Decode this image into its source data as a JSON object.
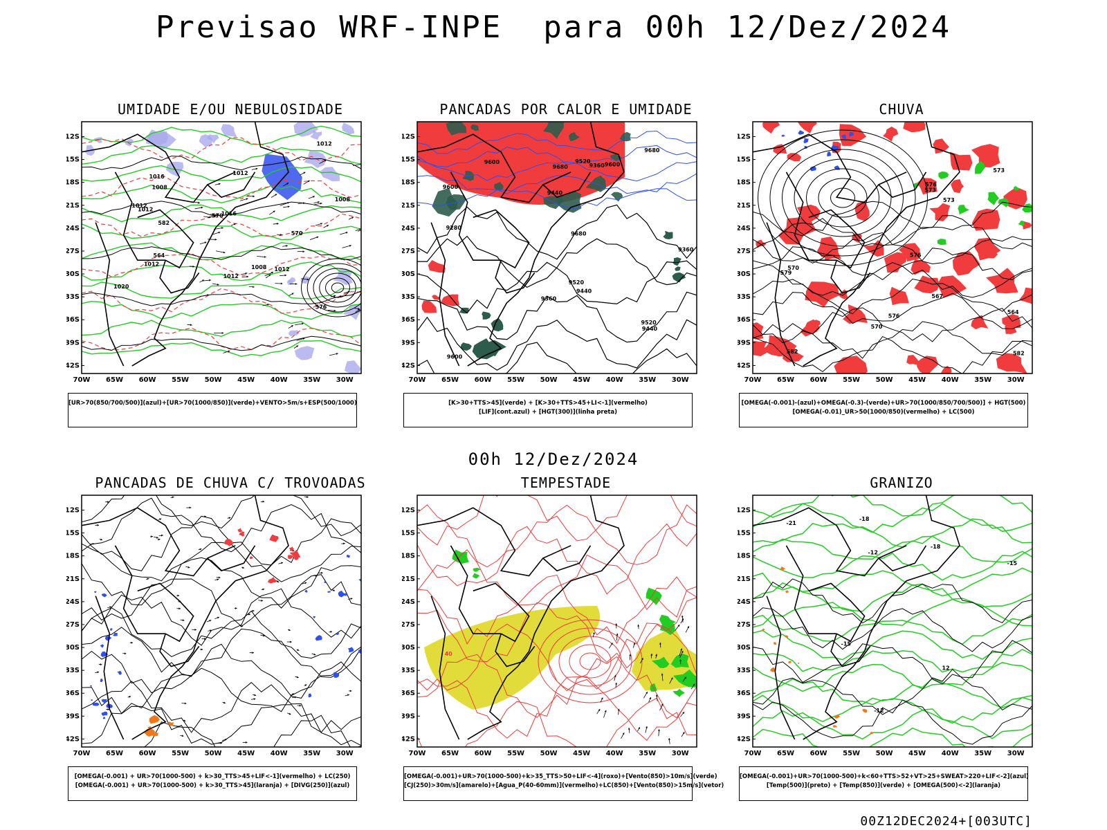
{
  "header": {
    "title": "Previsao WRF-INPE  para 00h 12/Dez/2024",
    "subtitle": "00h 12/Dez/2024"
  },
  "footer": {
    "run_label": "00Z12DEC2024+[003UTC]"
  },
  "axes": {
    "lat_labels": [
      "12S",
      "15S",
      "18S",
      "21S",
      "24S",
      "27S",
      "30S",
      "33S",
      "36S",
      "39S",
      "42S"
    ],
    "lon_labels": [
      "70W",
      "65W",
      "60W",
      "55W",
      "50W",
      "45W",
      "40W",
      "35W",
      "30W"
    ]
  },
  "colors": {
    "red": "#f03c3c",
    "green": "#22cc22",
    "blue": "#3050ee",
    "lavender": "#aaaaee",
    "yellow": "#e2dc3a",
    "orange": "#f07818",
    "darkgreen": "#2c5c4c"
  },
  "panels": [
    {
      "title": "UMIDADE E/OU NEBULOSIDADE",
      "legend": [
        "[UR>70(850/700/500)](azul)+[UR>70(1000/850)](verde)+VENTO>5m/s+ESP(500/1000)"
      ],
      "contour_labels": [
        "1012",
        "1012",
        "1008",
        "1008",
        "1012",
        "1012",
        "1016",
        "1012",
        "1008",
        "1012",
        "576",
        "570",
        "582",
        "1016",
        "1020",
        "1012",
        "564",
        "570"
      ]
    },
    {
      "title": "PANCADAS POR CALOR E UMIDADE",
      "legend": [
        "[K>30+TTS>45](verde) + [K>30+TTS>45+LI<-1](vermelho)",
        "[LIF](cont.azul) + [HGT(300)](linha preta)"
      ],
      "contour_labels": [
        "9680",
        "9680",
        "9600",
        "9680",
        "9600",
        "9600",
        "9520",
        "9440",
        "9600",
        "9360",
        "9520",
        "9440",
        "9280",
        "9360",
        "9440",
        "9520",
        "9360"
      ]
    },
    {
      "title": "CHUVA",
      "legend": [
        "[OMEGA(-0.001)-(azul)+OMEGA(-0.3)-(verde)+UR>70(1000/850/700/500)] + HGT(500)",
        "[OMEGA(-0.01)_UR>50(1000/850)(vermelho) + LC(500)"
      ],
      "contour_labels": [
        "582",
        "582",
        "579",
        "576",
        "573",
        "576",
        "573",
        "570",
        "567",
        "564",
        "576",
        "573",
        "570"
      ]
    },
    {
      "title": "PANCADAS DE CHUVA C/ TROVOADAS",
      "legend": [
        "[OMEGA(-0.001) + UR>70(1000-500) + k>30_TTS>45+LIF<-1](vermelho) + LC(250)",
        "[OMEGA(-0.001) + UR>70(1000-500) + k>30_TTS>45](laranja) + [DIVG(250)](azul)"
      ],
      "contour_labels": []
    },
    {
      "title": "TEMPESTADE",
      "legend": [
        "[OMEGA(-0.001)+UR>70(1000-500)+k>35_TTS>50+LIF<-4](roxo)+[Vento(850)>10m/s](verde)",
        "[CJ(250)>30m/s](amarelo)+[Agua_P(40-60mm)](vermelho)+LC(850)+[Vento(850)>15m/s](vetor)"
      ],
      "contour_labels": [
        "40"
      ]
    },
    {
      "title": "GRANIZO",
      "legend": [
        "[OMEGA(-0.001)+UR>70(1000-500)+k<60+TTS>52+VT>25+SWEAT>220+LIF<-2](azul)",
        "[Temp(500)](preto) + [Temp(850)](verde) + [OMEGA(500)<-2](laranja)"
      ],
      "contour_labels": [
        "-12",
        "-15",
        "-18",
        "-12",
        "-18",
        "-15",
        "-21",
        "12"
      ]
    }
  ]
}
